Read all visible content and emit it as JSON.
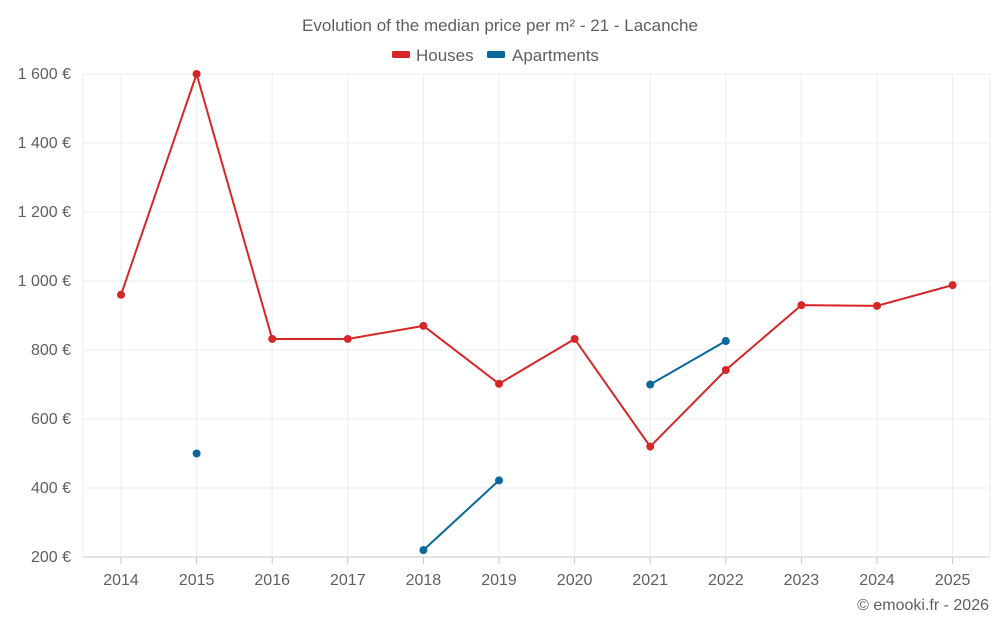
{
  "chart_data": {
    "type": "line",
    "title": "Evolution of the median price per m² - 21 - Lacanche",
    "x": [
      "2014",
      "2015",
      "2016",
      "2017",
      "2018",
      "2019",
      "2020",
      "2021",
      "2022",
      "2023",
      "2024",
      "2025"
    ],
    "y_ticks": [
      200,
      400,
      600,
      800,
      1000,
      1200,
      1400,
      1600
    ],
    "y_tick_labels": [
      "200 €",
      "400 €",
      "600 €",
      "800 €",
      "1 000 €",
      "1 200 €",
      "1 400 €",
      "1 600 €"
    ],
    "ylim": [
      200,
      1600
    ],
    "grid": true,
    "legend_position": "top-center",
    "series": [
      {
        "name": "Houses",
        "color": "#d62728",
        "values": [
          960,
          1600,
          832,
          832,
          870,
          702,
          832,
          520,
          742,
          930,
          928,
          988
        ]
      },
      {
        "name": "Apartments",
        "color": "#08679c",
        "values": [
          null,
          500,
          null,
          null,
          220,
          422,
          null,
          700,
          826,
          null,
          null,
          null
        ]
      }
    ]
  },
  "footer": {
    "credit": "© emooki.fr - 2026"
  }
}
